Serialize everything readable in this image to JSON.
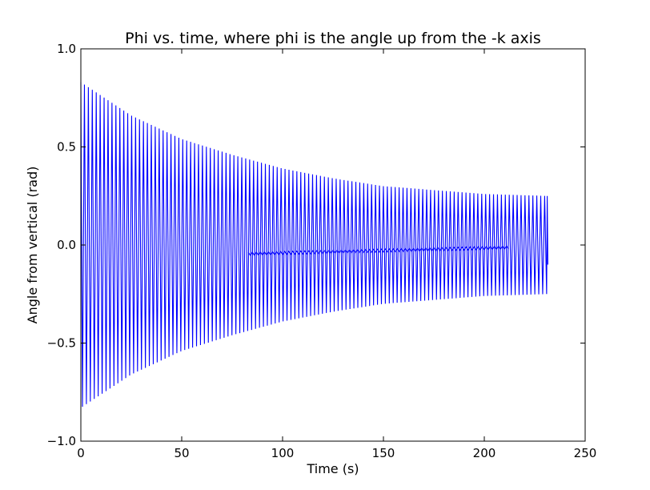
{
  "chart_data": {
    "type": "line",
    "title": "Phi vs. time, where phi is the angle up from the -k axis",
    "xlabel": "Time (s)",
    "ylabel": "Angle from vertical (rad)",
    "xlim": [
      0,
      250
    ],
    "ylim": [
      -1.0,
      1.0
    ],
    "xticks": [
      "0",
      "50",
      "100",
      "150",
      "200",
      "250"
    ],
    "xtick_values": [
      0,
      50,
      100,
      150,
      200,
      250
    ],
    "yticks": [
      "1.0",
      "0.5",
      "0.0",
      "−0.5",
      "−1.0"
    ],
    "ytick_values": [
      1.0,
      0.5,
      0.0,
      -0.5,
      -1.0
    ],
    "grid": false,
    "series": [
      {
        "color": "#0000ff",
        "description": "damped oscillation, sampled every ~2 s",
        "t_end": 231.5,
        "envelope_start": 0.83,
        "envelope_end": 0.25,
        "period": 1.95,
        "final_value": -0.1,
        "x": [
          0,
          25,
          50,
          75,
          100,
          125,
          150,
          175,
          200,
          231.5
        ],
        "y_envelope": [
          0.83,
          0.66,
          0.54,
          0.46,
          0.39,
          0.34,
          0.3,
          0.28,
          0.26,
          0.25
        ]
      }
    ]
  }
}
